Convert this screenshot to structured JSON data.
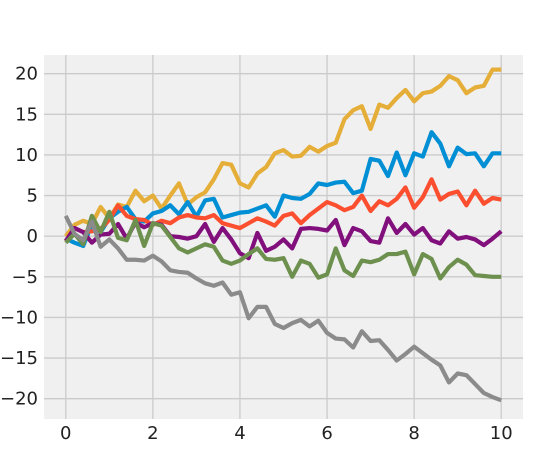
{
  "chart_data": {
    "type": "line",
    "title": "",
    "xlabel": "",
    "ylabel": "",
    "xlim": [
      -0.5,
      10.5
    ],
    "ylim": [
      -22.5,
      22.3
    ],
    "x_ticks": [
      0,
      2,
      4,
      6,
      8,
      10
    ],
    "y_ticks": [
      -20,
      -15,
      -10,
      -5,
      0,
      5,
      10,
      15,
      20
    ],
    "grid": true,
    "legend": "none",
    "style": {
      "background": "#f0f0f0",
      "grid_color": "#cbcbcb"
    },
    "x": [
      0.0,
      0.2,
      0.4,
      0.6,
      0.8,
      1.0,
      1.2,
      1.4,
      1.6,
      1.8,
      2.0,
      2.2,
      2.4,
      2.6,
      2.8,
      3.0,
      3.2,
      3.4,
      3.6,
      3.8,
      4.0,
      4.2,
      4.4,
      4.6,
      4.8,
      5.0,
      5.2,
      5.4,
      5.6,
      5.8,
      6.0,
      6.2,
      6.4,
      6.6,
      6.8,
      7.0,
      7.2,
      7.4,
      7.6,
      7.8,
      8.0,
      8.2,
      8.4,
      8.6,
      8.8,
      9.0,
      9.2,
      9.4,
      9.6,
      9.8,
      10.0
    ],
    "series": [
      {
        "color": "#e5ae38",
        "values": [
          0.0,
          1.4,
          1.9,
          1.5,
          3.6,
          2.2,
          3.9,
          3.6,
          5.6,
          4.3,
          5.0,
          3.4,
          5.0,
          6.5,
          3.9,
          4.8,
          5.4,
          7.0,
          9.0,
          8.8,
          6.5,
          6.0,
          7.7,
          8.5,
          10.2,
          10.6,
          9.8,
          9.9,
          11.0,
          10.4,
          11.1,
          11.5,
          14.4,
          15.5,
          16.0,
          13.2,
          16.2,
          15.8,
          17.0,
          18.0,
          16.6,
          17.6,
          17.8,
          18.5,
          19.7,
          19.2,
          17.6,
          18.3,
          18.5,
          20.5,
          20.5
        ]
      },
      {
        "color": "#008fd5",
        "values": [
          -0.3,
          -0.8,
          -1.2,
          1.5,
          0.5,
          2.2,
          3.0,
          3.6,
          2.1,
          1.8,
          2.8,
          3.1,
          3.8,
          2.7,
          4.2,
          2.4,
          4.4,
          4.6,
          2.3,
          2.6,
          2.9,
          3.0,
          3.4,
          3.8,
          2.4,
          5.0,
          4.7,
          4.6,
          5.2,
          6.5,
          6.3,
          6.6,
          6.7,
          5.3,
          5.6,
          9.5,
          9.3,
          7.4,
          10.3,
          7.5,
          10.2,
          9.8,
          12.8,
          11.4,
          8.6,
          10.9,
          10.1,
          10.2,
          8.6,
          10.2,
          10.2
        ]
      },
      {
        "color": "#fc4f30",
        "values": [
          -0.6,
          1.0,
          0.5,
          0.6,
          0.9,
          2.0,
          3.8,
          2.5,
          2.1,
          2.0,
          1.4,
          1.9,
          1.6,
          2.3,
          2.6,
          2.3,
          2.2,
          2.6,
          1.6,
          1.3,
          1.0,
          1.6,
          2.2,
          1.8,
          1.3,
          2.5,
          2.8,
          1.6,
          2.6,
          3.4,
          4.2,
          3.8,
          3.2,
          3.6,
          5.0,
          3.1,
          4.3,
          3.8,
          4.6,
          6.0,
          3.5,
          4.8,
          7.0,
          4.5,
          5.2,
          5.5,
          3.8,
          5.6,
          4.0,
          4.7,
          4.5
        ]
      },
      {
        "color": "#810f7c",
        "values": [
          -0.6,
          1.0,
          0.5,
          -0.8,
          0.2,
          0.3,
          1.5,
          -0.3,
          1.7,
          1.1,
          1.6,
          1.4,
          0.0,
          -0.1,
          -0.3,
          0.0,
          1.5,
          -0.7,
          1.0,
          -0.4,
          -2.1,
          -2.7,
          0.4,
          -1.8,
          -1.3,
          -0.4,
          -1.5,
          0.9,
          1.0,
          0.9,
          0.7,
          2.0,
          -1.1,
          1.0,
          0.6,
          -0.6,
          -0.8,
          2.2,
          0.4,
          1.5,
          0.2,
          1.0,
          -0.5,
          -0.9,
          0.6,
          -0.3,
          -0.1,
          -0.4,
          -1.1,
          -0.3,
          0.6
        ]
      },
      {
        "color": "#6d904f",
        "values": [
          -0.8,
          0.3,
          -1.0,
          2.5,
          0.5,
          3.0,
          -0.2,
          -0.5,
          2.0,
          -1.2,
          1.6,
          1.3,
          -0.1,
          -1.5,
          -2.0,
          -1.5,
          -1.0,
          -1.3,
          -3.0,
          -3.4,
          -3.0,
          -2.2,
          -1.5,
          -2.8,
          -2.9,
          -2.7,
          -5.0,
          -3.0,
          -3.4,
          -5.1,
          -4.7,
          -1.5,
          -4.2,
          -4.9,
          -3.0,
          -3.2,
          -2.9,
          -2.2,
          -2.2,
          -1.9,
          -4.7,
          -2.2,
          -2.8,
          -5.2,
          -3.8,
          -2.9,
          -3.5,
          -4.8,
          -4.9,
          -5.0,
          -5.0
        ]
      },
      {
        "color": "#8b8b8b",
        "values": [
          2.5,
          0.3,
          -0.5,
          1.8,
          -1.3,
          -0.4,
          -1.5,
          -2.9,
          -2.9,
          -3.0,
          -2.4,
          -3.1,
          -4.2,
          -4.4,
          -4.5,
          -5.2,
          -5.8,
          -6.1,
          -5.7,
          -7.2,
          -6.9,
          -10.1,
          -8.7,
          -8.7,
          -10.8,
          -11.3,
          -10.7,
          -10.3,
          -11.1,
          -10.4,
          -11.9,
          -12.6,
          -12.7,
          -13.7,
          -11.7,
          -12.9,
          -12.8,
          -14.0,
          -15.3,
          -14.5,
          -13.6,
          -14.4,
          -15.2,
          -15.9,
          -18.0,
          -16.9,
          -17.1,
          -18.2,
          -19.3,
          -19.8,
          -20.2
        ]
      }
    ]
  }
}
